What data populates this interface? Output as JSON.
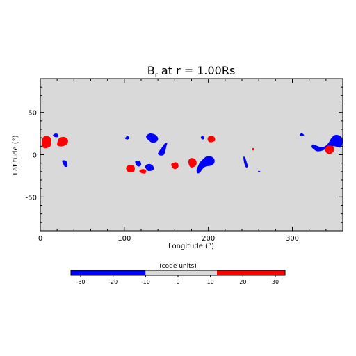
{
  "chart_data": {
    "type": "heatmap",
    "title_main": "B",
    "title_sub": "r",
    "title_rest": " at r = 1.00Rs",
    "xlabel": "Longitude (°)",
    "ylabel": "Latitude (°)",
    "xlim": [
      0,
      360
    ],
    "ylim": [
      -90,
      90
    ],
    "xticks": [
      0,
      100,
      200,
      300
    ],
    "yticks": [
      -50,
      0,
      50
    ],
    "background_color": "#d9d9d9",
    "positive_color": "#ff0000",
    "negative_color": "#0000ff",
    "regions": [
      {
        "pol": "pos",
        "pts": [
          [
            2,
            11
          ],
          [
            4,
            8
          ],
          [
            8,
            8
          ],
          [
            12,
            10
          ],
          [
            13,
            14
          ],
          [
            13,
            18
          ],
          [
            11,
            21
          ],
          [
            6,
            22
          ],
          [
            3,
            20
          ],
          [
            2,
            16
          ]
        ]
      },
      {
        "pol": "pos",
        "pts": [
          [
            20,
            12
          ],
          [
            22,
            10
          ],
          [
            27,
            10
          ],
          [
            31,
            12
          ],
          [
            33,
            15
          ],
          [
            32,
            19
          ],
          [
            28,
            21
          ],
          [
            23,
            20
          ],
          [
            21,
            17
          ]
        ]
      },
      {
        "pol": "neg",
        "pts": [
          [
            15,
            23
          ],
          [
            17,
            21
          ],
          [
            21,
            21
          ],
          [
            21,
            24
          ],
          [
            18,
            25
          ]
        ]
      },
      {
        "pol": "neg",
        "pts": [
          [
            26,
            -7
          ],
          [
            27,
            -10
          ],
          [
            29,
            -14
          ],
          [
            32,
            -14
          ],
          [
            32,
            -10
          ],
          [
            30,
            -7
          ]
        ]
      },
      {
        "pol": "neg",
        "pts": [
          [
            101,
            19
          ],
          [
            104,
            18
          ],
          [
            106,
            20
          ],
          [
            104,
            22
          ],
          [
            102,
            21
          ]
        ]
      },
      {
        "pol": "pos",
        "pts": [
          [
            102,
            -16
          ],
          [
            104,
            -20
          ],
          [
            108,
            -21
          ],
          [
            112,
            -19
          ],
          [
            112,
            -14
          ],
          [
            108,
            -12
          ],
          [
            104,
            -13
          ]
        ]
      },
      {
        "pol": "neg",
        "pts": [
          [
            113,
            -8
          ],
          [
            116,
            -7
          ],
          [
            119,
            -8
          ],
          [
            120,
            -12
          ],
          [
            117,
            -14
          ],
          [
            114,
            -12
          ]
        ]
      },
      {
        "pol": "pos",
        "pts": [
          [
            118,
            -20
          ],
          [
            121,
            -22
          ],
          [
            125,
            -22
          ],
          [
            126,
            -19
          ],
          [
            123,
            -17
          ],
          [
            119,
            -18
          ]
        ]
      },
      {
        "pol": "neg",
        "pts": [
          [
            125,
            -15
          ],
          [
            128,
            -19
          ],
          [
            132,
            -19
          ],
          [
            135,
            -17
          ],
          [
            134,
            -13
          ],
          [
            130,
            -11
          ],
          [
            126,
            -12
          ]
        ]
      },
      {
        "pol": "neg",
        "pts": [
          [
            126,
            22
          ],
          [
            130,
            25
          ],
          [
            136,
            24
          ],
          [
            140,
            20
          ],
          [
            139,
            16
          ],
          [
            134,
            14
          ],
          [
            130,
            16
          ],
          [
            127,
            19
          ]
        ]
      },
      {
        "pol": "neg",
        "pts": [
          [
            140,
            1
          ],
          [
            143,
            -1
          ],
          [
            147,
            0
          ],
          [
            149,
            5
          ],
          [
            150,
            10
          ],
          [
            151,
            14
          ],
          [
            148,
            13
          ],
          [
            145,
            9
          ],
          [
            142,
            5
          ]
        ]
      },
      {
        "pol": "pos",
        "pts": [
          [
            156,
            -11
          ],
          [
            157,
            -15
          ],
          [
            160,
            -17
          ],
          [
            164,
            -15
          ],
          [
            164,
            -11
          ],
          [
            161,
            -9
          ]
        ]
      },
      {
        "pol": "pos",
        "pts": [
          [
            176,
            -8
          ],
          [
            178,
            -14
          ],
          [
            181,
            -15
          ],
          [
            185,
            -13
          ],
          [
            186,
            -9
          ],
          [
            184,
            -5
          ],
          [
            179,
            -4
          ]
        ]
      },
      {
        "pol": "neg",
        "pts": [
          [
            186,
            -18
          ],
          [
            187,
            -22
          ],
          [
            190,
            -21
          ],
          [
            193,
            -17
          ],
          [
            197,
            -14
          ],
          [
            203,
            -13
          ],
          [
            207,
            -10
          ],
          [
            207,
            -5
          ],
          [
            203,
            -2
          ],
          [
            198,
            -2
          ],
          [
            194,
            -5
          ],
          [
            190,
            -9
          ],
          [
            188,
            -13
          ]
        ]
      },
      {
        "pol": "neg",
        "pts": [
          [
            191,
            20
          ],
          [
            193,
            18
          ],
          [
            195,
            19
          ],
          [
            194,
            22
          ],
          [
            192,
            22
          ]
        ]
      },
      {
        "pol": "pos",
        "pts": [
          [
            199,
            18
          ],
          [
            201,
            15
          ],
          [
            205,
            15
          ],
          [
            208,
            17
          ],
          [
            207,
            21
          ],
          [
            203,
            22
          ],
          [
            200,
            21
          ]
        ]
      },
      {
        "pol": "neg",
        "pts": [
          [
            242,
            -2
          ],
          [
            244,
            -4
          ],
          [
            246,
            -10
          ],
          [
            247,
            -14
          ],
          [
            245,
            -15
          ],
          [
            243,
            -11
          ],
          [
            242,
            -6
          ]
        ]
      },
      {
        "pol": "pos",
        "pts": [
          [
            252,
            6
          ],
          [
            254,
            5
          ],
          [
            255,
            7
          ],
          [
            253,
            8
          ]
        ]
      },
      {
        "pol": "neg",
        "pts": [
          [
            259,
            -20
          ],
          [
            261,
            -21
          ],
          [
            262,
            -20
          ],
          [
            260,
            -19
          ]
        ]
      },
      {
        "pol": "neg",
        "pts": [
          [
            309,
            23
          ],
          [
            311,
            22
          ],
          [
            314,
            23
          ],
          [
            312,
            25
          ],
          [
            310,
            25
          ]
        ]
      },
      {
        "pol": "neg",
        "pts": [
          [
            324,
            12
          ],
          [
            328,
            11
          ],
          [
            334,
            9
          ],
          [
            339,
            10
          ],
          [
            343,
            14
          ],
          [
            346,
            19
          ],
          [
            350,
            23
          ],
          [
            355,
            23
          ],
          [
            359,
            20
          ],
          [
            360,
            16
          ],
          [
            358,
            9
          ],
          [
            354,
            9
          ],
          [
            349,
            10
          ],
          [
            343,
            8
          ],
          [
            336,
            5
          ],
          [
            330,
            4
          ],
          [
            326,
            6
          ],
          [
            323,
            9
          ]
        ]
      },
      {
        "pol": "pos",
        "pts": [
          [
            339,
            6
          ],
          [
            341,
            2
          ],
          [
            345,
            1
          ],
          [
            349,
            4
          ],
          [
            349,
            9
          ],
          [
            345,
            11
          ],
          [
            341,
            10
          ]
        ]
      }
    ]
  },
  "colorbar": {
    "label": "(code units)",
    "range": [
      -33,
      33
    ],
    "neutral_range": [
      -10,
      12
    ],
    "ticks": [
      -30,
      -20,
      -10,
      0,
      10,
      20,
      30
    ]
  }
}
